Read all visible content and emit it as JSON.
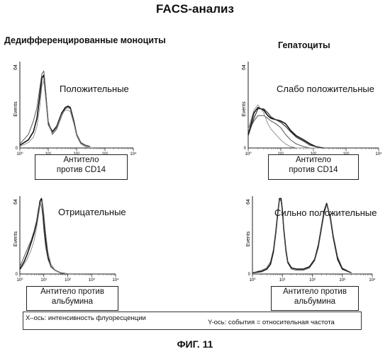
{
  "title": "FACS-анализ",
  "columns": {
    "left": "Дедифференцированные моноциты",
    "right": "Гепатоциты"
  },
  "legend": {
    "x_axis": "X–ось: интенсивность флуоресценции",
    "y_axis": "Y-ось: события = относительная частота"
  },
  "figure_label": "ФИГ. 11",
  "chart_data": [
    {
      "type": "line",
      "panel": "top-left",
      "description": "Положительные",
      "antibody": [
        "Антитело",
        "против CD14"
      ],
      "ylabel": "Events",
      "ymax_label": "64",
      "xscale": "log",
      "xlim": [
        1,
        10000
      ],
      "ylim": [
        0,
        64
      ],
      "xticks": [
        "10⁰",
        "10¹",
        "10²",
        "10³",
        "10⁴"
      ],
      "series": [
        {
          "x": [
            1,
            2,
            3,
            4,
            5,
            6,
            7,
            8,
            10,
            14,
            20,
            30,
            40,
            50,
            60,
            80,
            100,
            140,
            200,
            300
          ],
          "y": [
            2,
            6,
            12,
            22,
            38,
            52,
            54,
            42,
            18,
            12,
            16,
            26,
            30,
            31,
            30,
            20,
            10,
            4,
            2,
            1
          ]
        },
        {
          "x": [
            1,
            2,
            3,
            4,
            5,
            6,
            7,
            8,
            10,
            14,
            20,
            30,
            40,
            50,
            60,
            80,
            100,
            140,
            200,
            300
          ],
          "y": [
            3,
            10,
            20,
            30,
            44,
            55,
            57,
            44,
            20,
            10,
            14,
            24,
            29,
            30,
            29,
            19,
            10,
            4,
            2,
            1
          ]
        },
        {
          "x": [
            1,
            2,
            3,
            4,
            5,
            6,
            7,
            8,
            10,
            14,
            20,
            30,
            40,
            50,
            60,
            80,
            100,
            140,
            200,
            300
          ],
          "y": [
            1,
            4,
            8,
            16,
            30,
            46,
            50,
            38,
            17,
            11,
            15,
            25,
            28,
            28,
            27,
            18,
            9,
            3,
            1,
            0
          ]
        }
      ]
    },
    {
      "type": "line",
      "panel": "top-right",
      "description": "Слабо положительные",
      "antibody": [
        "Антитело",
        "против CD14"
      ],
      "ylabel": "Events",
      "ymax_label": "64",
      "xscale": "log",
      "xlim": [
        1,
        10000
      ],
      "ylim": [
        0,
        64
      ],
      "xticks": [
        "10⁰",
        "10¹",
        "10²",
        "10³",
        "10⁴"
      ],
      "series": [
        {
          "x": [
            1,
            1.5,
            2,
            3,
            4,
            5,
            7,
            10,
            14,
            20,
            30,
            50,
            80,
            120,
            200
          ],
          "y": [
            10,
            26,
            30,
            28,
            24,
            22,
            21,
            20,
            18,
            13,
            9,
            6,
            3,
            1,
            0
          ]
        },
        {
          "x": [
            1,
            1.5,
            2,
            3,
            4,
            5,
            7,
            10,
            14,
            20,
            30,
            50,
            80,
            120,
            200
          ],
          "y": [
            12,
            20,
            24,
            24,
            22,
            20,
            18,
            15,
            10,
            6,
            3,
            1,
            0,
            0,
            0
          ]
        },
        {
          "x": [
            1,
            1.5,
            2,
            3,
            4,
            5,
            7,
            10,
            14,
            20,
            30,
            50,
            80,
            120,
            200
          ],
          "y": [
            14,
            28,
            32,
            26,
            18,
            14,
            10,
            6,
            3,
            1,
            0,
            0,
            0,
            0,
            0
          ]
        },
        {
          "x": [
            1,
            1.5,
            2,
            3,
            4,
            5,
            7,
            10,
            14,
            20,
            30,
            50,
            80,
            120,
            200
          ],
          "y": [
            9,
            22,
            29,
            29,
            26,
            23,
            21,
            19,
            16,
            12,
            8,
            5,
            2,
            1,
            0
          ]
        }
      ]
    },
    {
      "type": "line",
      "panel": "bottom-left",
      "description": "Отрицательные",
      "antibody": [
        "Антитело против",
        "альбумина"
      ],
      "ylabel": "Events",
      "ymax_label": "64",
      "xscale": "log",
      "xlim": [
        1,
        10000
      ],
      "ylim": [
        0,
        64
      ],
      "xticks": [
        "10⁰",
        "10¹",
        "10²",
        "10³",
        "10⁴"
      ],
      "series": [
        {
          "x": [
            1,
            1.5,
            2,
            3,
            4,
            5,
            6,
            7,
            8,
            9,
            10,
            12,
            15,
            20,
            30,
            50,
            100
          ],
          "y": [
            4,
            10,
            16,
            26,
            34,
            42,
            52,
            60,
            62,
            56,
            44,
            28,
            14,
            6,
            3,
            1,
            0
          ]
        },
        {
          "x": [
            1,
            1.5,
            2,
            3,
            4,
            5,
            6,
            7,
            8,
            9,
            10,
            12,
            15,
            20,
            30,
            50,
            100
          ],
          "y": [
            6,
            14,
            20,
            28,
            36,
            44,
            54,
            58,
            56,
            48,
            36,
            22,
            12,
            6,
            3,
            1,
            0
          ]
        },
        {
          "x": [
            1,
            1.5,
            2,
            3,
            4,
            5,
            6,
            7,
            8,
            9,
            10,
            12,
            15,
            20,
            30,
            50,
            100
          ],
          "y": [
            3,
            8,
            12,
            20,
            28,
            38,
            48,
            56,
            60,
            58,
            50,
            34,
            18,
            8,
            3,
            1,
            0
          ]
        }
      ]
    },
    {
      "type": "line",
      "panel": "bottom-right",
      "description": "Сильно положительные",
      "antibody": [
        "Антитело против",
        "альбумина"
      ],
      "ylabel": "Events",
      "ymax_label": "64",
      "xscale": "log",
      "xlim": [
        1,
        10000
      ],
      "ylim": [
        0,
        64
      ],
      "xticks": [
        "10⁰",
        "10¹",
        "10²",
        "10³",
        "10⁴"
      ],
      "series": [
        {
          "x": [
            1,
            2,
            3,
            4,
            5,
            6,
            7,
            8,
            9,
            10,
            11,
            13,
            15,
            20,
            30,
            50,
            80,
            120,
            160,
            200,
            250,
            300,
            400,
            500,
            700,
            1000,
            2000
          ],
          "y": [
            1,
            2,
            4,
            8,
            18,
            34,
            50,
            62,
            62,
            52,
            38,
            20,
            10,
            5,
            4,
            4,
            6,
            12,
            24,
            38,
            52,
            58,
            46,
            30,
            12,
            4,
            1
          ]
        },
        {
          "x": [
            1,
            2,
            3,
            4,
            5,
            6,
            7,
            8,
            9,
            10,
            11,
            13,
            15,
            20,
            30,
            50,
            80,
            120,
            160,
            200,
            250,
            300,
            400,
            500,
            700,
            1000,
            2000
          ],
          "y": [
            1,
            3,
            5,
            10,
            20,
            36,
            52,
            61,
            60,
            50,
            36,
            18,
            9,
            4,
            3,
            3,
            5,
            11,
            22,
            36,
            50,
            57,
            48,
            32,
            14,
            5,
            1
          ]
        }
      ]
    }
  ]
}
